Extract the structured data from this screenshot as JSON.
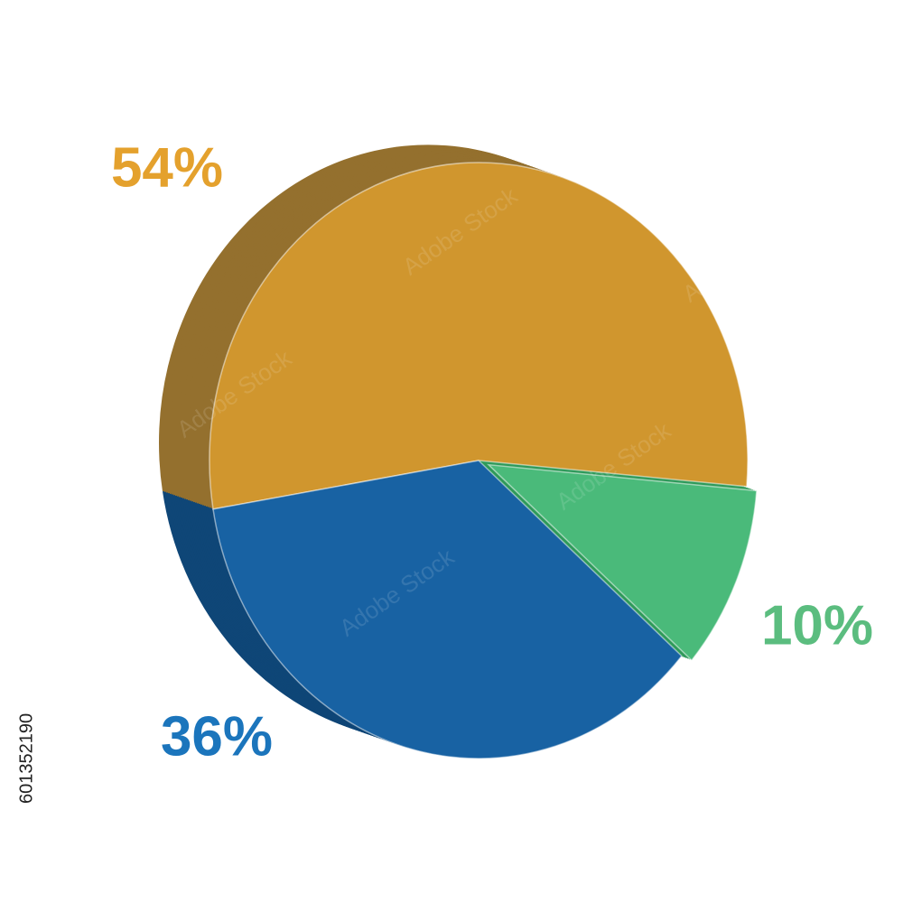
{
  "chart_data": {
    "type": "pie",
    "categories": [
      null,
      null,
      null
    ],
    "values": [
      54,
      36,
      10
    ],
    "value_labels": [
      "54%",
      "36%",
      "10%"
    ],
    "colors": [
      "#d0962e",
      "#1862a3",
      "#4aba7a"
    ],
    "side_colors": [
      "#94702e",
      "#0f4677",
      "#2f9a5a"
    ],
    "label_colors": [
      "#e4a12d",
      "#1b75bc",
      "#5bbd7f"
    ]
  },
  "stock_id": "601352190",
  "watermark": "Adobe Stock"
}
